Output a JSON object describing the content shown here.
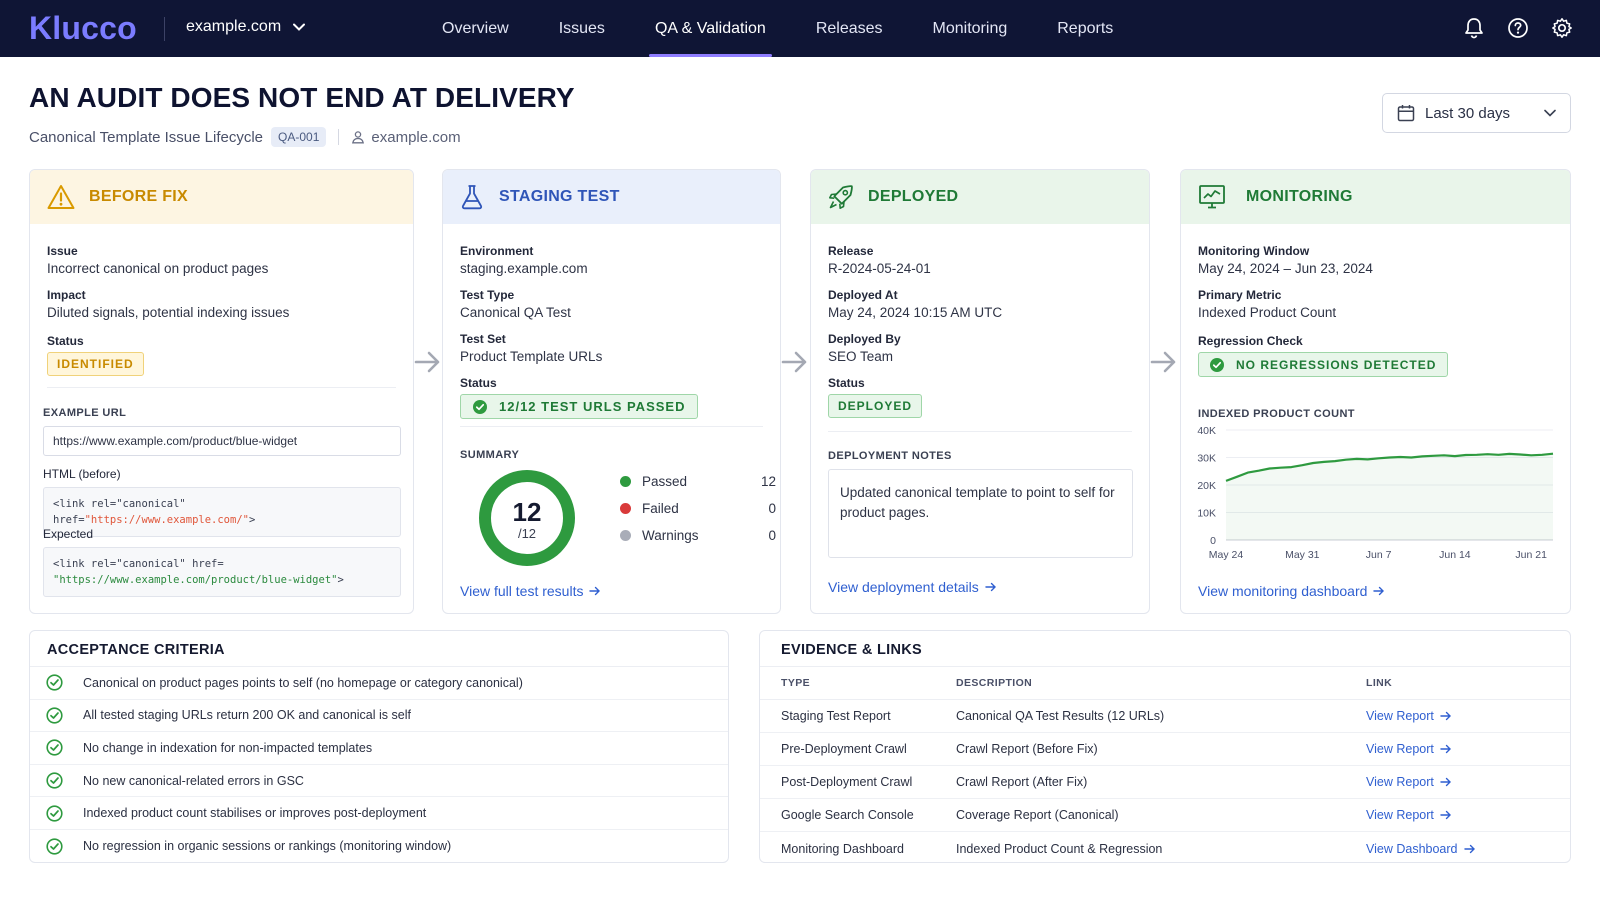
{
  "nav": {
    "logo": "Klucco",
    "site": "example.com",
    "links": [
      "Overview",
      "Issues",
      "QA & Validation",
      "Releases",
      "Monitoring",
      "Reports"
    ],
    "active_index": 2,
    "icons": [
      "bell-icon",
      "help-icon",
      "settings-icon"
    ]
  },
  "header": {
    "title": "AN AUDIT DOES NOT END AT DELIVERY",
    "subtitle": "Canonical Template Issue Lifecycle",
    "id_badge": "QA-001",
    "domain": "example.com",
    "date_range": "Last 30 days"
  },
  "before_fix": {
    "title": "BEFORE FIX",
    "issue_label": "Issue",
    "issue_value": "Incorrect canonical on product pages",
    "impact_label": "Impact",
    "impact_value": "Diluted signals, potential indexing issues",
    "status_label": "Status",
    "status_value": "IDENTIFIED",
    "example_url_label": "EXAMPLE URL",
    "example_url_value": "https://www.example.com/product/blue-widget",
    "html_before_label": "HTML (before)",
    "html_before_prefix": "<link rel=\"canonical\" href=",
    "html_before_string": "\"https://www.example.com/\"",
    "html_before_suffix": ">",
    "expected_label": "Expected",
    "expected_line1": "<link rel=\"canonical\" href=",
    "expected_string": "\"https://www.example.com/product/blue-widget\"",
    "expected_suffix": ">"
  },
  "staging": {
    "title": "STAGING TEST",
    "env_label": "Environment",
    "env_value": "staging.example.com",
    "type_label": "Test Type",
    "type_value": "Canonical QA Test",
    "set_label": "Test Set",
    "set_value": "Product Template URLs",
    "status_label": "Status",
    "status_value": "12/12 TEST URLS PASSED",
    "summary_label": "SUMMARY",
    "donut_value": "12",
    "donut_total": "/12",
    "legend": [
      {
        "name": "Passed",
        "count": "12",
        "color": "#2e9a3f"
      },
      {
        "name": "Failed",
        "count": "0",
        "color": "#d93a3a"
      },
      {
        "name": "Warnings",
        "count": "0",
        "color": "#a9adb8"
      }
    ],
    "link": "View full test results"
  },
  "deployed": {
    "title": "DEPLOYED",
    "release_label": "Release",
    "release_value": "R-2024-05-24-01",
    "at_label": "Deployed At",
    "at_value": "May 24, 2024 10:15 AM UTC",
    "by_label": "Deployed By",
    "by_value": "SEO Team",
    "status_label": "Status",
    "status_value": "DEPLOYED",
    "notes_label": "DEPLOYMENT NOTES",
    "notes_value": "Updated canonical template to point to self for product pages.",
    "link": "View deployment details"
  },
  "monitoring": {
    "title": "MONITORING",
    "window_label": "Monitoring Window",
    "window_value": "May 24, 2024 – Jun 23, 2024",
    "metric_label": "Primary Metric",
    "metric_value": "Indexed Product Count",
    "regression_label": "Regression Check",
    "regression_value": "NO REGRESSIONS DETECTED",
    "chart_title": "INDEXED PRODUCT COUNT",
    "link": "View monitoring dashboard"
  },
  "chart_data": {
    "type": "line",
    "title": "INDEXED PRODUCT COUNT",
    "xlabel": "",
    "ylabel": "",
    "ylim": [
      0,
      40000
    ],
    "yticks": [
      "40K",
      "30K",
      "20K",
      "10K",
      "0"
    ],
    "xticks": [
      "May 24",
      "May 31",
      "Jun 7",
      "Jun 14",
      "Jun 21"
    ],
    "grid": true,
    "x": [
      "May 24",
      "May 25",
      "May 26",
      "May 27",
      "May 28",
      "May 29",
      "May 30",
      "May 31",
      "Jun 1",
      "Jun 2",
      "Jun 3",
      "Jun 4",
      "Jun 5",
      "Jun 6",
      "Jun 7",
      "Jun 8",
      "Jun 9",
      "Jun 10",
      "Jun 11",
      "Jun 12",
      "Jun 13",
      "Jun 14",
      "Jun 15",
      "Jun 16",
      "Jun 17",
      "Jun 18",
      "Jun 19",
      "Jun 20",
      "Jun 21",
      "Jun 22",
      "Jun 23"
    ],
    "series": [
      {
        "color": "#2e9a3f",
        "values": [
          21500,
          23000,
          24500,
          25200,
          26000,
          26300,
          26500,
          27200,
          28000,
          28400,
          28700,
          29200,
          29500,
          29300,
          29700,
          30000,
          30200,
          30000,
          30400,
          30600,
          30800,
          30500,
          30900,
          31000,
          31200,
          31000,
          31300,
          31100,
          30800,
          31000,
          31400
        ]
      }
    ]
  },
  "acceptance": {
    "title": "ACCEPTANCE CRITERIA",
    "items": [
      "Canonical on product pages points to self (no homepage or category canonical)",
      "All tested staging URLs return 200 OK and canonical is self",
      "No change in indexation for non-impacted templates",
      "No new canonical-related errors in GSC",
      "Indexed product count stabilises or improves post-deployment",
      "No regression in organic sessions or rankings (monitoring window)"
    ]
  },
  "evidence": {
    "title": "EVIDENCE & LINKS",
    "headers": [
      "TYPE",
      "DESCRIPTION",
      "LINK"
    ],
    "rows": [
      {
        "type": "Staging Test Report",
        "description": "Canonical QA Test Results (12 URLs)",
        "link": "View Report"
      },
      {
        "type": "Pre-Deployment Crawl",
        "description": "Crawl Report (Before Fix)",
        "link": "View Report"
      },
      {
        "type": "Post-Deployment Crawl",
        "description": "Crawl Report (After Fix)",
        "link": "View Report"
      },
      {
        "type": "Google Search Console",
        "description": "Coverage Report (Canonical)",
        "link": "View Report"
      },
      {
        "type": "Monitoring Dashboard",
        "description": "Indexed Product Count & Regression",
        "link": "View Dashboard"
      }
    ]
  }
}
